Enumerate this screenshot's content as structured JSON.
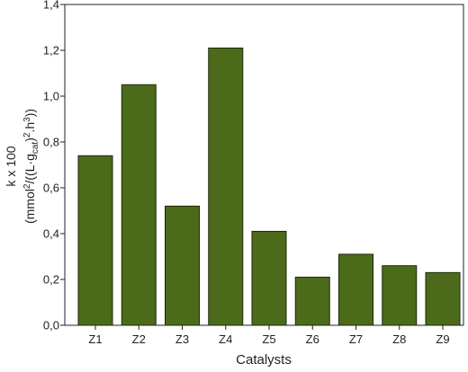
{
  "chart_data": {
    "type": "bar",
    "categories": [
      "Z1",
      "Z2",
      "Z3",
      "Z4",
      "Z5",
      "Z6",
      "Z7",
      "Z8",
      "Z9"
    ],
    "values": [
      0.74,
      1.05,
      0.52,
      1.21,
      0.41,
      0.21,
      0.31,
      0.26,
      0.23
    ],
    "color": "#4b6b1a",
    "ylim": [
      0,
      1.4
    ],
    "yticks": [
      {
        "value": 0,
        "label": "0,0"
      },
      {
        "value": 0.2,
        "label": "0,2"
      },
      {
        "value": 0.4,
        "label": "0,4"
      },
      {
        "value": 0.6,
        "label": "0,6"
      },
      {
        "value": 0.8,
        "label": "0,8"
      },
      {
        "value": 1.0,
        "label": "1,0"
      },
      {
        "value": 1.2,
        "label": "1,2"
      },
      {
        "value": 1.4,
        "label": "1,4"
      }
    ],
    "xlabel": "Catalysts",
    "ylabel": [
      "k x 100",
      [
        "(mmol",
        "2",
        "/((L·g",
        "cat",
        ")",
        "2",
        ".h",
        "3",
        "))"
      ]
    ],
    "grid": false
  }
}
